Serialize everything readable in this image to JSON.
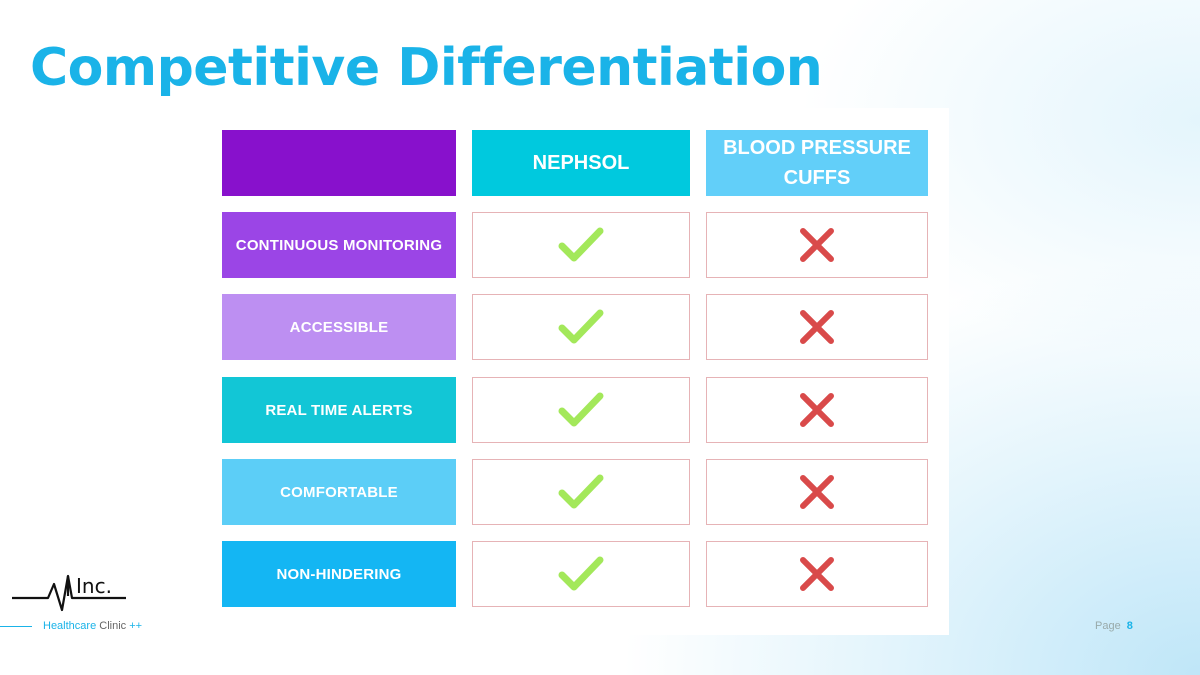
{
  "title": "Competitive Differentiation",
  "table": {
    "columns": [
      "NEPHSOL",
      "BLOOD PRESSURE CUFFS"
    ],
    "rows": [
      {
        "label": "CONTINUOUS MONITORING",
        "color": "#9b45e6",
        "nephsol": "check",
        "cuffs": "cross"
      },
      {
        "label": "ACCESSIBLE",
        "color": "#bd8ff2",
        "nephsol": "check",
        "cuffs": "cross"
      },
      {
        "label": "REAL TIME ALERTS",
        "color": "#12c6d6",
        "nephsol": "check",
        "cuffs": "cross"
      },
      {
        "label": "COMFORTABLE",
        "color": "#5ccef7",
        "nephsol": "check",
        "cuffs": "cross"
      },
      {
        "label": "NON-HINDERING",
        "color": "#14b6f3",
        "nephsol": "check",
        "cuffs": "cross"
      }
    ],
    "header_colors": {
      "corner": "#8811cc",
      "nephsol": "#00c9de",
      "cuffs": "#62cff9"
    },
    "check_color": "#a3e85a",
    "cross_color": "#d94a4a"
  },
  "logo": {
    "text": "Inc."
  },
  "footer": {
    "brand": "Healthcare",
    "suffix": "Clinic",
    "plus": "++"
  },
  "page": {
    "label": "Page",
    "number": "8"
  }
}
